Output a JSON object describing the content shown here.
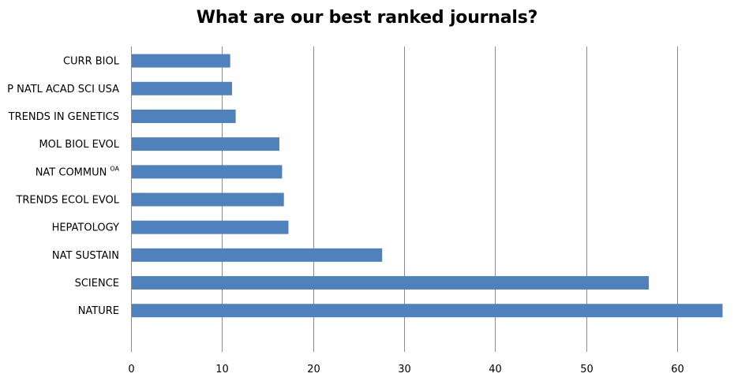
{
  "chart_data": {
    "type": "bar",
    "orientation": "horizontal",
    "title": "What are our best ranked journals?",
    "xlabel": "",
    "ylabel": "",
    "categories": [
      {
        "label": "CURR BIOL",
        "sup": ""
      },
      {
        "label": "P NATL ACAD SCI USA",
        "sup": ""
      },
      {
        "label": "TRENDS IN GENETICS",
        "sup": ""
      },
      {
        "label": "MOL BIOL EVOL",
        "sup": ""
      },
      {
        "label": "NAT COMMUN",
        "sup": "OA"
      },
      {
        "label": "TRENDS ECOL EVOL",
        "sup": ""
      },
      {
        "label": "HEPATOLOGY",
        "sup": ""
      },
      {
        "label": "NAT SUSTAIN",
        "sup": ""
      },
      {
        "label": "SCIENCE",
        "sup": ""
      },
      {
        "label": "NATURE",
        "sup": ""
      }
    ],
    "values": [
      10.9,
      11.1,
      11.5,
      16.3,
      16.6,
      16.8,
      17.3,
      27.6,
      56.9,
      65.0
    ],
    "xlim": [
      0,
      65
    ],
    "xticks": [
      0,
      10,
      20,
      30,
      40,
      50,
      60
    ],
    "grid": true,
    "legend": "none",
    "bar_color": "#4f81bd",
    "grid_color": "#8c8c8c",
    "axis_color": "#8c8c8c"
  }
}
